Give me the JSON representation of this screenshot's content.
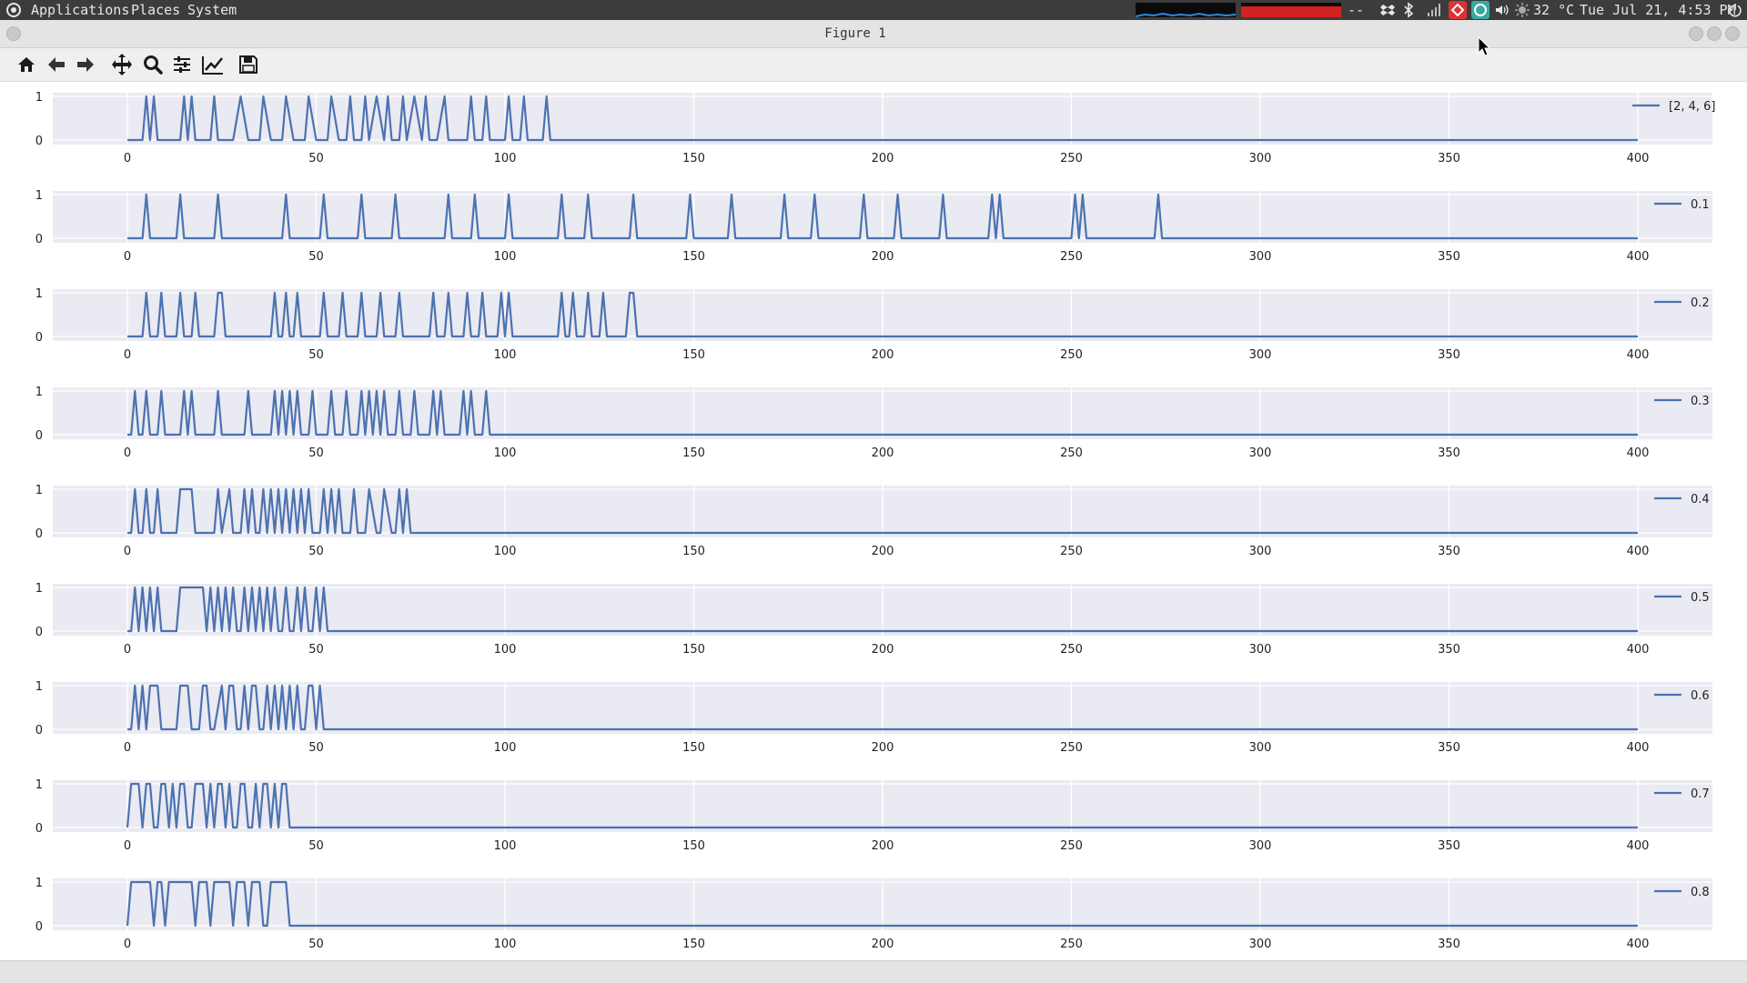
{
  "topbar": {
    "menus": [
      "Applications",
      "Places",
      "System"
    ],
    "separator": "--",
    "temperature": "32 °C",
    "datetime": "Tue Jul 21,  4:53 PM"
  },
  "window": {
    "title": "Figure 1"
  },
  "toolbar": {
    "buttons": [
      "home-icon",
      "back-icon",
      "forward-icon",
      "pan-icon",
      "zoom-icon",
      "configure-subplots-icon",
      "edit-axes-icon",
      "save-icon"
    ]
  },
  "colors": {
    "line": "#4c72b0",
    "axes_bg": "#eaeaf2",
    "grid": "#ffffff"
  },
  "chart_data": [
    {
      "type": "line",
      "legend": "[2, 4, 6]",
      "xlim": [
        0,
        400
      ],
      "ylim": [
        0,
        1
      ],
      "xticks": [
        0,
        50,
        100,
        150,
        200,
        250,
        300,
        350,
        400
      ],
      "yticks": [
        0,
        1
      ],
      "grid": true,
      "legend_loc": "upper right",
      "x": [
        0,
        4,
        5,
        6,
        7,
        8,
        10,
        14,
        15,
        16,
        17,
        18,
        20,
        22,
        23,
        24,
        26,
        28,
        30,
        32,
        35,
        36,
        38,
        41,
        42,
        44,
        47,
        48,
        50,
        53,
        54,
        56,
        58,
        59,
        60,
        62,
        63,
        64,
        66,
        68,
        69,
        70,
        72,
        73,
        74,
        76,
        78,
        79,
        80,
        82,
        84,
        85,
        86,
        90,
        91,
        92,
        94,
        95,
        96,
        100,
        101,
        102,
        104,
        105,
        106,
        110,
        111,
        112,
        114,
        115,
        400
      ],
      "y": [
        0,
        0,
        1,
        0,
        1,
        0,
        0,
        0,
        1,
        0,
        1,
        0,
        0,
        0,
        1,
        0,
        0,
        0,
        1,
        0,
        0,
        1,
        0,
        0,
        1,
        0,
        0,
        1,
        0,
        0,
        1,
        0,
        0,
        1,
        0,
        0,
        1,
        0,
        1,
        0,
        1,
        0,
        0,
        1,
        0,
        1,
        0,
        1,
        0,
        0,
        1,
        0,
        0,
        0,
        1,
        0,
        0,
        1,
        0,
        0,
        1,
        0,
        0,
        1,
        0,
        0,
        1,
        0,
        0,
        0,
        0
      ]
    },
    {
      "type": "line",
      "legend": "0.1",
      "xlim": [
        0,
        400
      ],
      "ylim": [
        0,
        1
      ],
      "xticks": [
        0,
        50,
        100,
        150,
        200,
        250,
        300,
        350,
        400
      ],
      "yticks": [
        0,
        1
      ],
      "grid": true,
      "legend_loc": "upper right",
      "x": [
        0,
        4,
        5,
        6,
        13,
        14,
        15,
        23,
        24,
        25,
        41,
        42,
        43,
        51,
        52,
        53,
        61,
        62,
        63,
        70,
        71,
        72,
        84,
        85,
        86,
        91,
        92,
        93,
        100,
        101,
        102,
        114,
        115,
        116,
        121,
        122,
        123,
        133,
        134,
        135,
        148,
        149,
        150,
        159,
        160,
        161,
        173,
        174,
        175,
        181,
        182,
        183,
        194,
        195,
        196,
        203,
        204,
        205,
        215,
        216,
        217,
        228,
        229,
        230,
        231,
        232,
        250,
        251,
        252,
        253,
        254,
        272,
        273,
        274,
        400
      ],
      "y": [
        0,
        0,
        1,
        0,
        0,
        1,
        0,
        0,
        1,
        0,
        0,
        1,
        0,
        0,
        1,
        0,
        0,
        1,
        0,
        0,
        1,
        0,
        0,
        1,
        0,
        0,
        1,
        0,
        0,
        1,
        0,
        0,
        1,
        0,
        0,
        1,
        0,
        0,
        1,
        0,
        0,
        1,
        0,
        0,
        1,
        0,
        0,
        1,
        0,
        0,
        1,
        0,
        0,
        1,
        0,
        0,
        1,
        0,
        0,
        1,
        0,
        0,
        1,
        0,
        1,
        0,
        0,
        1,
        0,
        1,
        0,
        0,
        1,
        0,
        0
      ]
    },
    {
      "type": "line",
      "legend": "0.2",
      "xlim": [
        0,
        400
      ],
      "ylim": [
        0,
        1
      ],
      "xticks": [
        0,
        50,
        100,
        150,
        200,
        250,
        300,
        350,
        400
      ],
      "yticks": [
        0,
        1
      ],
      "grid": true,
      "legend_loc": "upper right",
      "x": [
        0,
        4,
        5,
        6,
        8,
        9,
        10,
        13,
        14,
        15,
        17,
        18,
        19,
        23,
        24,
        25,
        26,
        38,
        39,
        40,
        41,
        42,
        43,
        44,
        45,
        46,
        51,
        52,
        53,
        56,
        57,
        58,
        61,
        62,
        63,
        66,
        67,
        68,
        71,
        72,
        73,
        80,
        81,
        82,
        84,
        85,
        86,
        89,
        90,
        91,
        93,
        94,
        95,
        98,
        99,
        100,
        101,
        102,
        114,
        115,
        116,
        117,
        118,
        119,
        121,
        122,
        123,
        125,
        126,
        127,
        132,
        133,
        134,
        135,
        400
      ],
      "y": [
        0,
        0,
        1,
        0,
        0,
        1,
        0,
        0,
        1,
        0,
        0,
        1,
        0,
        0,
        1,
        1,
        0,
        0,
        1,
        0,
        0,
        1,
        0,
        0,
        1,
        0,
        0,
        1,
        0,
        0,
        1,
        0,
        0,
        1,
        0,
        0,
        1,
        0,
        0,
        1,
        0,
        0,
        1,
        0,
        0,
        1,
        0,
        0,
        1,
        0,
        0,
        1,
        0,
        0,
        1,
        0,
        1,
        0,
        0,
        1,
        0,
        0,
        1,
        0,
        0,
        1,
        0,
        0,
        1,
        0,
        0,
        1,
        1,
        0,
        0
      ]
    },
    {
      "type": "line",
      "legend": "0.3",
      "xlim": [
        0,
        400
      ],
      "ylim": [
        0,
        1
      ],
      "xticks": [
        0,
        50,
        100,
        150,
        200,
        250,
        300,
        350,
        400
      ],
      "yticks": [
        0,
        1
      ],
      "grid": true,
      "legend_loc": "upper right",
      "x": [
        0,
        1,
        2,
        3,
        4,
        5,
        6,
        8,
        9,
        10,
        14,
        15,
        16,
        17,
        18,
        23,
        24,
        25,
        31,
        32,
        33,
        38,
        39,
        40,
        41,
        42,
        43,
        44,
        45,
        46,
        48,
        49,
        50,
        53,
        54,
        55,
        57,
        58,
        59,
        61,
        62,
        63,
        64,
        65,
        66,
        67,
        68,
        69,
        71,
        72,
        73,
        75,
        76,
        77,
        80,
        81,
        82,
        83,
        84,
        88,
        89,
        90,
        91,
        92,
        94,
        95,
        96,
        400
      ],
      "y": [
        0,
        0,
        1,
        0,
        0,
        1,
        0,
        0,
        1,
        0,
        0,
        1,
        0,
        1,
        0,
        0,
        1,
        0,
        0,
        1,
        0,
        0,
        1,
        0,
        1,
        0,
        1,
        0,
        1,
        0,
        0,
        1,
        0,
        0,
        1,
        0,
        0,
        1,
        0,
        0,
        1,
        0,
        1,
        0,
        1,
        0,
        1,
        0,
        0,
        1,
        0,
        0,
        1,
        0,
        0,
        1,
        0,
        1,
        0,
        0,
        1,
        0,
        1,
        0,
        0,
        1,
        0,
        0
      ]
    },
    {
      "type": "line",
      "legend": "0.4",
      "xlim": [
        0,
        400
      ],
      "ylim": [
        0,
        1
      ],
      "xticks": [
        0,
        50,
        100,
        150,
        200,
        250,
        300,
        350,
        400
      ],
      "yticks": [
        0,
        1
      ],
      "grid": true,
      "legend_loc": "upper right",
      "x": [
        0,
        1,
        2,
        3,
        4,
        5,
        6,
        7,
        8,
        9,
        10,
        13,
        14,
        15,
        17,
        18,
        23,
        24,
        25,
        27,
        28,
        30,
        31,
        32,
        33,
        34,
        35,
        36,
        37,
        38,
        39,
        40,
        41,
        42,
        43,
        44,
        45,
        46,
        47,
        48,
        49,
        51,
        52,
        53,
        54,
        55,
        56,
        57,
        59,
        60,
        61,
        63,
        64,
        66,
        67,
        68,
        70,
        71,
        72,
        73,
        74,
        75,
        76,
        400
      ],
      "y": [
        0,
        0,
        1,
        0,
        0,
        1,
        0,
        0,
        1,
        0,
        0,
        0,
        1,
        1,
        1,
        0,
        0,
        1,
        0,
        1,
        0,
        0,
        1,
        0,
        1,
        0,
        0,
        1,
        0,
        1,
        0,
        1,
        0,
        1,
        0,
        1,
        0,
        1,
        0,
        1,
        0,
        0,
        1,
        0,
        1,
        0,
        1,
        0,
        0,
        1,
        0,
        0,
        1,
        0,
        0,
        1,
        0,
        0,
        1,
        0,
        1,
        0,
        0,
        0
      ]
    },
    {
      "type": "line",
      "legend": "0.5",
      "xlim": [
        0,
        400
      ],
      "ylim": [
        0,
        1
      ],
      "xticks": [
        0,
        50,
        100,
        150,
        200,
        250,
        300,
        350,
        400
      ],
      "yticks": [
        0,
        1
      ],
      "grid": true,
      "legend_loc": "upper right",
      "x": [
        0,
        1,
        2,
        3,
        4,
        5,
        6,
        7,
        8,
        9,
        10,
        13,
        14,
        15,
        16,
        20,
        21,
        22,
        23,
        24,
        25,
        26,
        27,
        28,
        29,
        30,
        31,
        32,
        33,
        34,
        35,
        36,
        37,
        38,
        39,
        40,
        41,
        42,
        43,
        44,
        45,
        46,
        47,
        48,
        49,
        50,
        51,
        52,
        53,
        400
      ],
      "y": [
        0,
        0,
        1,
        0,
        1,
        0,
        1,
        0,
        1,
        0,
        0,
        0,
        1,
        1,
        1,
        1,
        0,
        1,
        0,
        1,
        0,
        1,
        0,
        1,
        0,
        0,
        1,
        0,
        1,
        0,
        1,
        0,
        1,
        0,
        1,
        0,
        0,
        1,
        0,
        0,
        1,
        0,
        1,
        0,
        0,
        1,
        0,
        1,
        0,
        0
      ]
    },
    {
      "type": "line",
      "legend": "0.6",
      "xlim": [
        0,
        400
      ],
      "ylim": [
        0,
        1
      ],
      "xticks": [
        0,
        50,
        100,
        150,
        200,
        250,
        300,
        350,
        400
      ],
      "yticks": [
        0,
        1
      ],
      "grid": true,
      "legend_loc": "upper right",
      "x": [
        0,
        1,
        2,
        3,
        4,
        5,
        6,
        7,
        8,
        9,
        10,
        13,
        14,
        15,
        16,
        17,
        19,
        20,
        21,
        22,
        23,
        25,
        26,
        27,
        28,
        29,
        30,
        31,
        32,
        33,
        34,
        35,
        36,
        37,
        38,
        39,
        40,
        41,
        42,
        43,
        44,
        45,
        46,
        47,
        48,
        49,
        50,
        51,
        52,
        53,
        400
      ],
      "y": [
        0,
        0,
        1,
        0,
        1,
        0,
        1,
        1,
        1,
        0,
        0,
        0,
        1,
        1,
        1,
        0,
        0,
        1,
        1,
        0,
        0,
        1,
        0,
        1,
        1,
        0,
        0,
        1,
        0,
        1,
        1,
        0,
        0,
        1,
        0,
        1,
        0,
        1,
        0,
        1,
        0,
        1,
        0,
        0,
        1,
        1,
        0,
        1,
        0,
        0,
        0
      ]
    },
    {
      "type": "line",
      "legend": "0.7",
      "xlim": [
        0,
        400
      ],
      "ylim": [
        0,
        1
      ],
      "xticks": [
        0,
        50,
        100,
        150,
        200,
        250,
        300,
        350,
        400
      ],
      "yticks": [
        0,
        1
      ],
      "grid": true,
      "legend_loc": "upper right",
      "x": [
        0,
        1,
        2,
        3,
        4,
        5,
        6,
        7,
        8,
        9,
        10,
        11,
        12,
        13,
        14,
        15,
        16,
        17,
        18,
        19,
        20,
        21,
        22,
        23,
        24,
        25,
        26,
        27,
        28,
        29,
        30,
        31,
        32,
        33,
        34,
        35,
        36,
        37,
        38,
        39,
        40,
        41,
        42,
        43,
        400
      ],
      "y": [
        0,
        1,
        1,
        1,
        0,
        1,
        1,
        0,
        0,
        1,
        1,
        0,
        1,
        0,
        1,
        1,
        0,
        0,
        1,
        1,
        1,
        0,
        1,
        0,
        1,
        1,
        0,
        1,
        0,
        0,
        1,
        1,
        0,
        0,
        1,
        0,
        1,
        1,
        0,
        1,
        0,
        1,
        1,
        0,
        0
      ]
    },
    {
      "type": "line",
      "legend": "0.8",
      "xlim": [
        0,
        400
      ],
      "ylim": [
        0,
        1
      ],
      "xticks": [
        0,
        50,
        100,
        150,
        200,
        250,
        300,
        350,
        400
      ],
      "yticks": [
        0,
        1
      ],
      "grid": true,
      "legend_loc": "upper right",
      "x": [
        0,
        1,
        2,
        3,
        4,
        5,
        6,
        7,
        8,
        9,
        10,
        11,
        12,
        13,
        14,
        15,
        16,
        17,
        18,
        19,
        20,
        21,
        22,
        23,
        24,
        25,
        26,
        27,
        28,
        29,
        30,
        31,
        32,
        33,
        34,
        35,
        36,
        37,
        38,
        39,
        40,
        41,
        42,
        43,
        400
      ],
      "y": [
        0,
        1,
        1,
        1,
        1,
        1,
        1,
        0,
        1,
        1,
        0,
        1,
        1,
        1,
        1,
        1,
        1,
        1,
        0,
        1,
        1,
        1,
        0,
        1,
        1,
        1,
        1,
        1,
        0,
        1,
        1,
        1,
        0,
        1,
        1,
        1,
        0,
        0,
        1,
        1,
        1,
        1,
        1,
        0,
        0
      ]
    }
  ]
}
